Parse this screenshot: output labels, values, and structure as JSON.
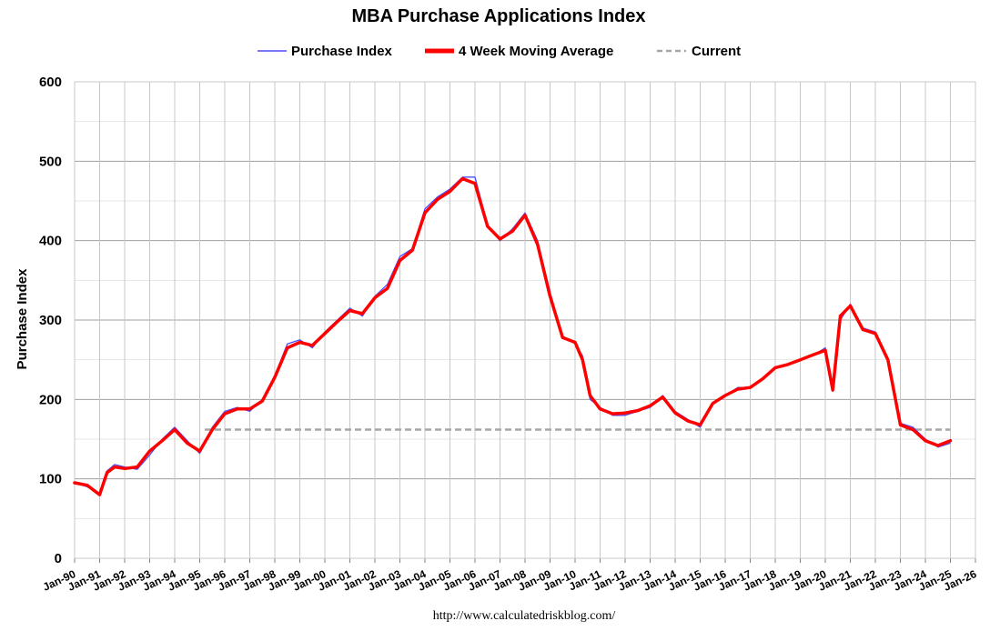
{
  "chart_data": {
    "type": "line",
    "title": "MBA Purchase Applications Index",
    "ylabel": "Purchase Index",
    "xlabel": "",
    "ylim": [
      0,
      600
    ],
    "yticks": [
      0,
      100,
      200,
      300,
      400,
      500,
      600
    ],
    "xlim": [
      1990,
      2026
    ],
    "xtick_labels": [
      "Jan-90",
      "Jan-91",
      "Jan-92",
      "Jan-93",
      "Jan-94",
      "Jan-95",
      "Jan-96",
      "Jan-97",
      "Jan-98",
      "Jan-99",
      "Jan-00",
      "Jan-01",
      "Jan-02",
      "Jan-03",
      "Jan-04",
      "Jan-05",
      "Jan-06",
      "Jan-07",
      "Jan-08",
      "Jan-09",
      "Jan-10",
      "Jan-11",
      "Jan-12",
      "Jan-13",
      "Jan-14",
      "Jan-15",
      "Jan-16",
      "Jan-17",
      "Jan-18",
      "Jan-19",
      "Jan-20",
      "Jan-21",
      "Jan-22",
      "Jan-23",
      "Jan-24",
      "Jan-25",
      "Jan-26"
    ],
    "grid": true,
    "legend_position": "top-center",
    "source": "http://www.calculatedriskblog.com/",
    "series": [
      {
        "name": "Purchase Index",
        "style": "thin line",
        "color": "#4b4bff",
        "x": [
          1990.0,
          1990.5,
          1991.0,
          1991.3,
          1991.6,
          1992.0,
          1992.5,
          1993.0,
          1993.5,
          1994.0,
          1994.5,
          1995.0,
          1995.5,
          1996.0,
          1996.5,
          1997.0,
          1997.5,
          1998.0,
          1998.5,
          1999.0,
          1999.5,
          2000.0,
          2000.5,
          2001.0,
          2001.5,
          2002.0,
          2002.5,
          2003.0,
          2003.5,
          2004.0,
          2004.5,
          2005.0,
          2005.5,
          2006.0,
          2006.5,
          2007.0,
          2007.5,
          2008.0,
          2008.5,
          2009.0,
          2009.5,
          2010.0,
          2010.3,
          2010.6,
          2011.0,
          2011.5,
          2012.0,
          2012.5,
          2013.0,
          2013.5,
          2014.0,
          2014.5,
          2015.0,
          2015.5,
          2016.0,
          2016.5,
          2017.0,
          2017.5,
          2018.0,
          2018.5,
          2019.0,
          2019.5,
          2020.0,
          2020.3,
          2020.6,
          2021.0,
          2021.5,
          2022.0,
          2022.5,
          2023.0,
          2023.5,
          2024.0,
          2024.5,
          2025.0
        ],
        "values": [
          95,
          90,
          82,
          110,
          118,
          115,
          112,
          130,
          150,
          165,
          148,
          132,
          165,
          185,
          190,
          185,
          200,
          230,
          270,
          275,
          265,
          285,
          300,
          315,
          305,
          330,
          345,
          380,
          390,
          440,
          455,
          465,
          480,
          480,
          420,
          400,
          415,
          435,
          400,
          335,
          280,
          270,
          255,
          200,
          190,
          180,
          180,
          185,
          190,
          205,
          185,
          175,
          165,
          195,
          205,
          215,
          215,
          225,
          240,
          245,
          250,
          255,
          265,
          210,
          300,
          320,
          290,
          285,
          250,
          170,
          165,
          150,
          140,
          145
        ]
      },
      {
        "name": "4 Week Moving Average",
        "style": "thick line",
        "color": "#ff0000",
        "x": [
          1990.0,
          1990.5,
          1991.0,
          1991.3,
          1991.6,
          1992.0,
          1992.5,
          1993.0,
          1993.5,
          1994.0,
          1994.5,
          1995.0,
          1995.5,
          1996.0,
          1996.5,
          1997.0,
          1997.5,
          1998.0,
          1998.5,
          1999.0,
          1999.5,
          2000.0,
          2000.5,
          2001.0,
          2001.5,
          2002.0,
          2002.5,
          2003.0,
          2003.5,
          2004.0,
          2004.5,
          2005.0,
          2005.5,
          2006.0,
          2006.5,
          2007.0,
          2007.5,
          2008.0,
          2008.5,
          2009.0,
          2009.5,
          2010.0,
          2010.3,
          2010.6,
          2011.0,
          2011.5,
          2012.0,
          2012.5,
          2013.0,
          2013.5,
          2014.0,
          2014.5,
          2015.0,
          2015.5,
          2016.0,
          2016.5,
          2017.0,
          2017.5,
          2018.0,
          2018.5,
          2019.0,
          2019.5,
          2020.0,
          2020.3,
          2020.6,
          2021.0,
          2021.5,
          2022.0,
          2022.5,
          2023.0,
          2023.5,
          2024.0,
          2024.5,
          2025.0
        ],
        "values": [
          95,
          92,
          80,
          108,
          115,
          113,
          115,
          135,
          148,
          162,
          145,
          135,
          162,
          182,
          188,
          188,
          198,
          228,
          265,
          272,
          268,
          283,
          298,
          312,
          308,
          328,
          340,
          375,
          388,
          435,
          452,
          462,
          478,
          472,
          418,
          402,
          412,
          432,
          395,
          330,
          278,
          272,
          250,
          205,
          188,
          182,
          183,
          186,
          192,
          203,
          183,
          173,
          168,
          195,
          205,
          213,
          215,
          226,
          240,
          244,
          250,
          256,
          262,
          212,
          305,
          318,
          288,
          283,
          250,
          168,
          162,
          148,
          142,
          148
        ]
      },
      {
        "name": "Current",
        "style": "dashed line",
        "color": "#a6a6a6",
        "x": [
          1995.2,
          2025.0
        ],
        "values": [
          162,
          162
        ]
      }
    ]
  }
}
